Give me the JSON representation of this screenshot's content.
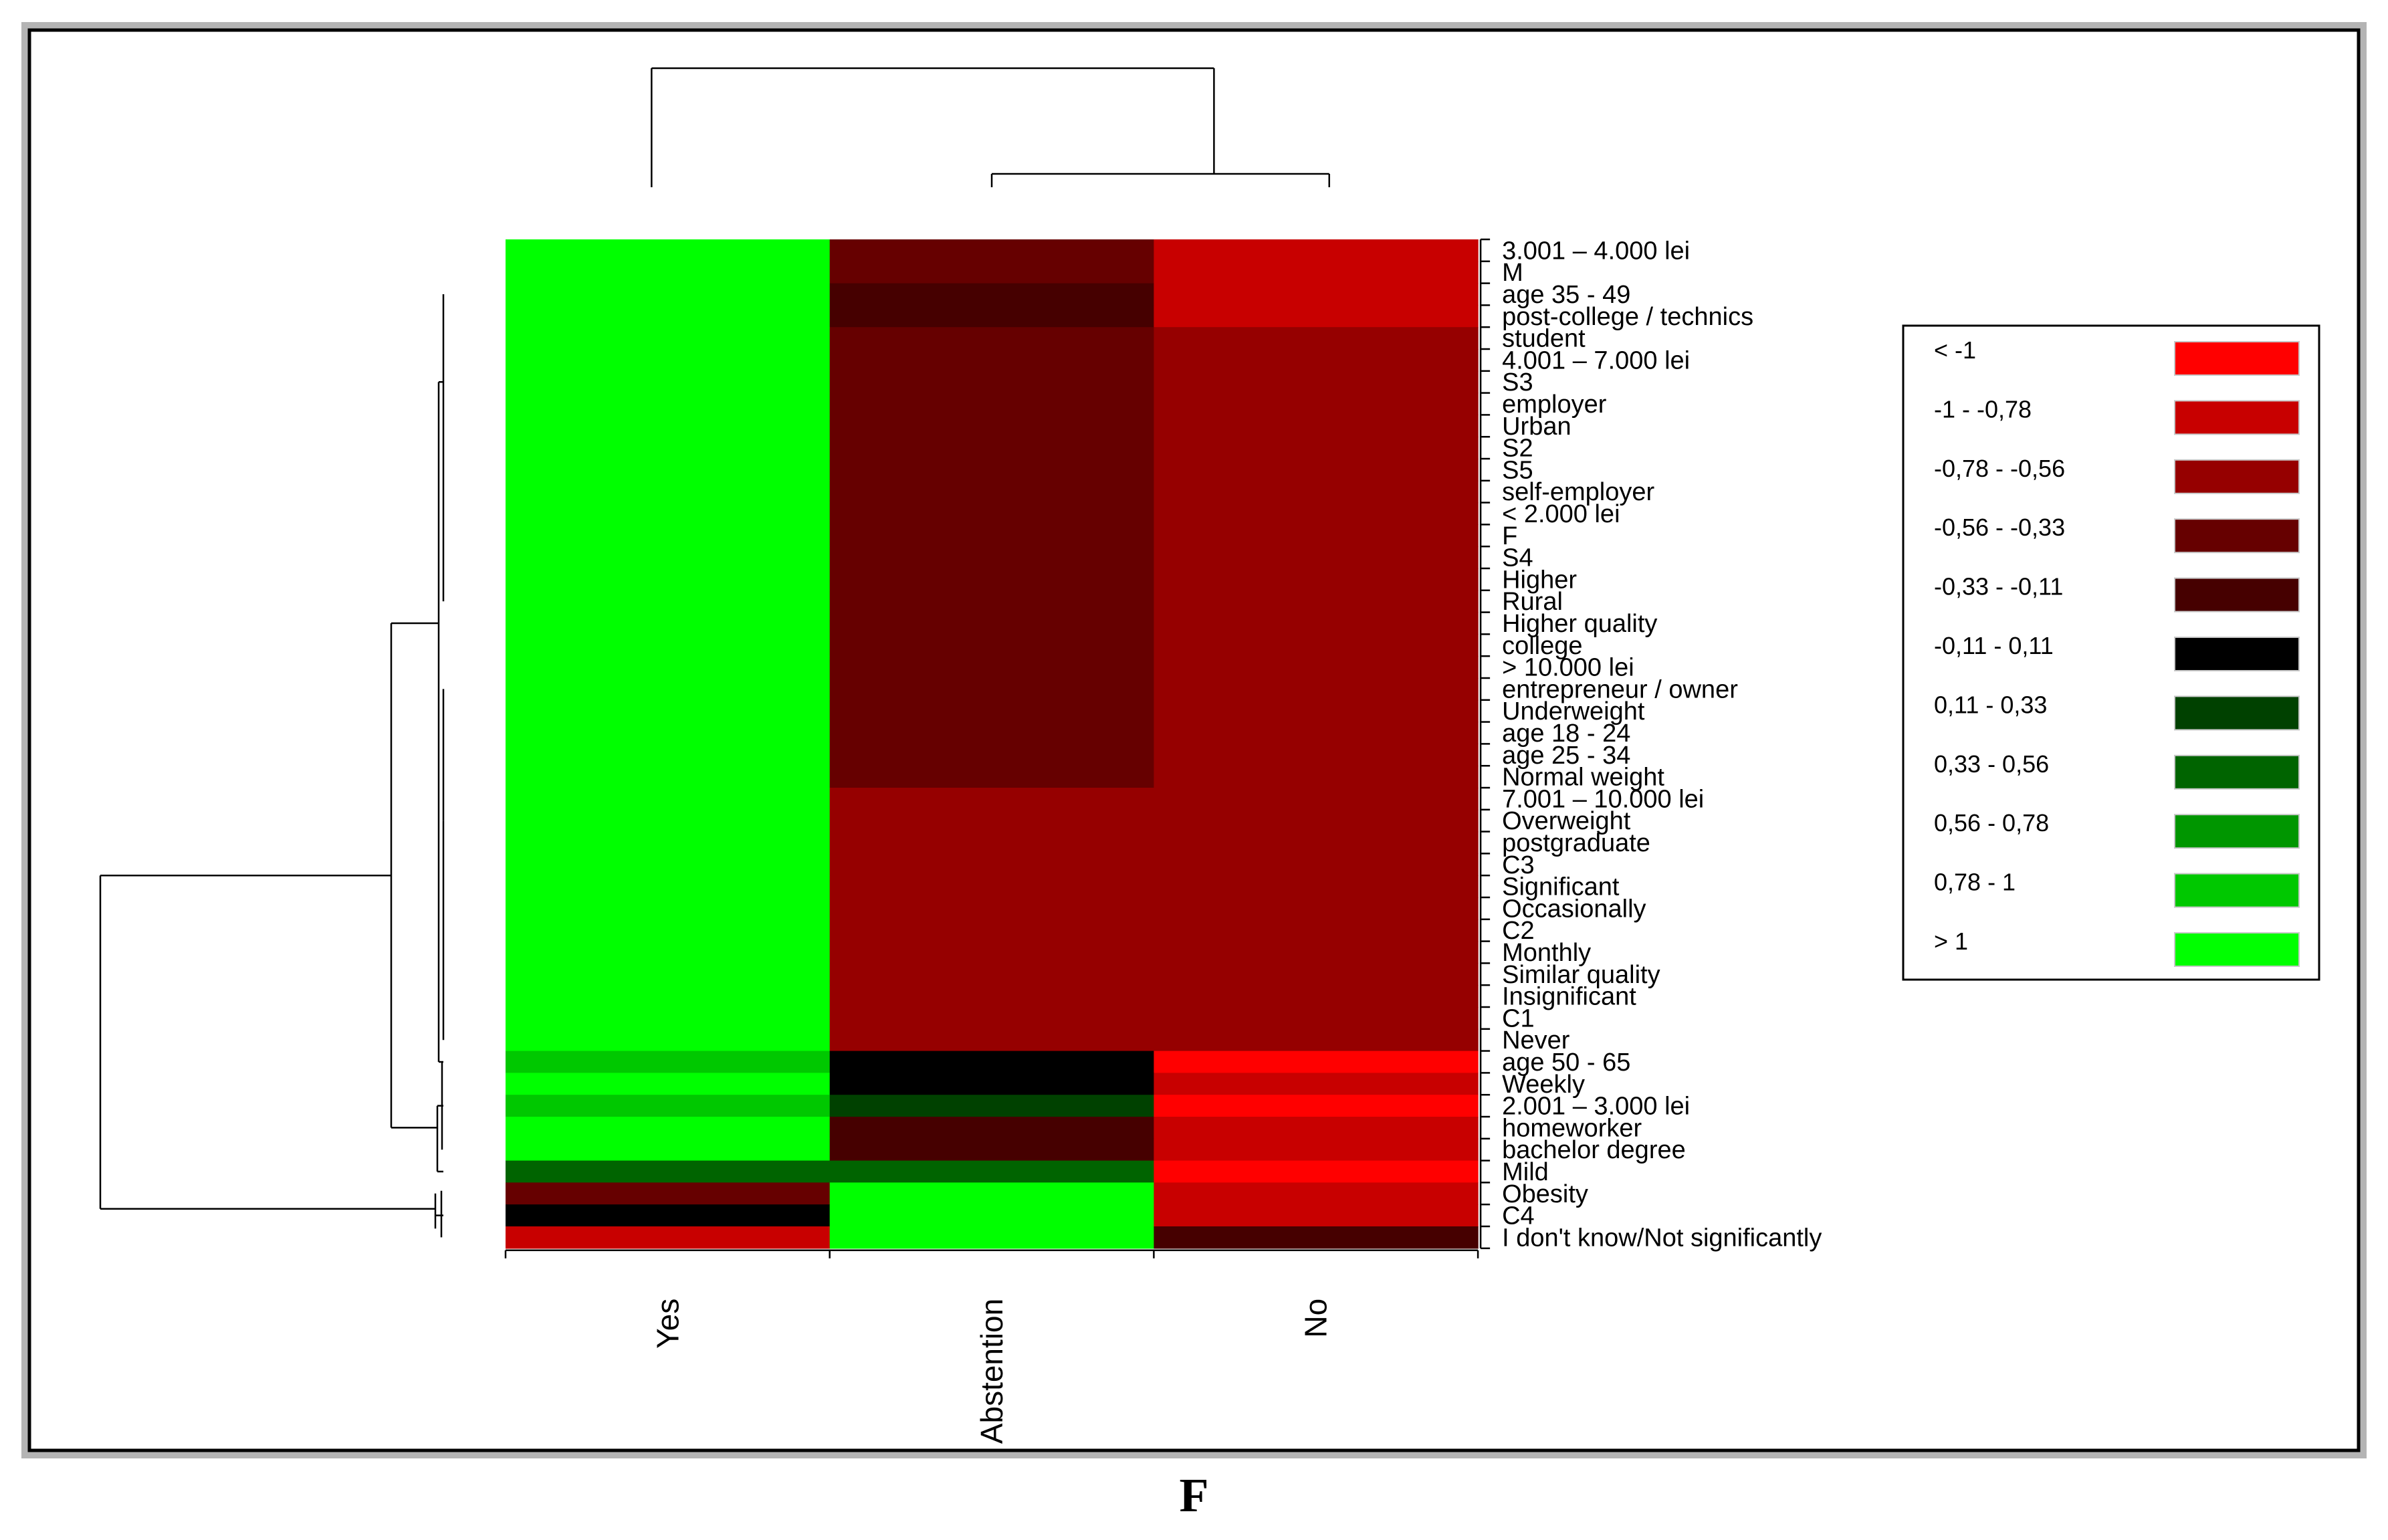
{
  "panel_label": "F",
  "colors": {
    "gt1": "#00ff00",
    "c078_1": "#00c800",
    "c056_078": "#009600",
    "c033_056": "#006400",
    "c011_033": "#004100",
    "c0": "#000000",
    "m033_011": "#460000",
    "m056_033": "#660000",
    "m078_056": "#960000",
    "m1_078": "#c80000",
    "lt_m1": "#ff0000"
  },
  "chart_data": {
    "type": "heatmap",
    "title": "",
    "columns": [
      "Yes",
      "Abstention",
      "No"
    ],
    "rows": [
      "3.001 – 4.000 lei",
      "M",
      "age 35 - 49",
      "post-college / technics",
      "student",
      "4.001 – 7.000 lei",
      "S3",
      "employer",
      "Urban",
      "S2",
      "S5",
      "self-employer",
      "< 2.000 lei",
      "F",
      "S4",
      "Higher",
      "Rural",
      "Higher quality",
      "college",
      "> 10.000 lei",
      "entrepreneur / owner",
      "Underweight",
      "age 18 - 24",
      "age 25 - 34",
      "Normal weight",
      "7.001 – 10.000 lei",
      "Overweight",
      "postgraduate",
      "C3",
      "Significant",
      "Occasionally",
      "C2",
      "Monthly",
      "Similar quality",
      "Insignificant",
      "C1",
      "Never",
      "age 50 - 65",
      "Weekly",
      "2.001 – 3.000 lei",
      "homeworker",
      "bachelor degree",
      "Mild",
      "Obesity",
      "C4",
      "I don't know/Not significantly"
    ],
    "cells": [
      [
        "gt1",
        "m056_033",
        "m1_078"
      ],
      [
        "gt1",
        "m056_033",
        "m1_078"
      ],
      [
        "gt1",
        "m033_011",
        "m1_078"
      ],
      [
        "gt1",
        "m033_011",
        "m1_078"
      ],
      [
        "gt1",
        "m056_033",
        "m078_056"
      ],
      [
        "gt1",
        "m056_033",
        "m078_056"
      ],
      [
        "gt1",
        "m056_033",
        "m078_056"
      ],
      [
        "gt1",
        "m056_033",
        "m078_056"
      ],
      [
        "gt1",
        "m056_033",
        "m078_056"
      ],
      [
        "gt1",
        "m056_033",
        "m078_056"
      ],
      [
        "gt1",
        "m056_033",
        "m078_056"
      ],
      [
        "gt1",
        "m056_033",
        "m078_056"
      ],
      [
        "gt1",
        "m056_033",
        "m078_056"
      ],
      [
        "gt1",
        "m056_033",
        "m078_056"
      ],
      [
        "gt1",
        "m056_033",
        "m078_056"
      ],
      [
        "gt1",
        "m056_033",
        "m078_056"
      ],
      [
        "gt1",
        "m056_033",
        "m078_056"
      ],
      [
        "gt1",
        "m056_033",
        "m078_056"
      ],
      [
        "gt1",
        "m056_033",
        "m078_056"
      ],
      [
        "gt1",
        "m056_033",
        "m078_056"
      ],
      [
        "gt1",
        "m056_033",
        "m078_056"
      ],
      [
        "gt1",
        "m056_033",
        "m078_056"
      ],
      [
        "gt1",
        "m056_033",
        "m078_056"
      ],
      [
        "gt1",
        "m056_033",
        "m078_056"
      ],
      [
        "gt1",
        "m056_033",
        "m078_056"
      ],
      [
        "gt1",
        "m078_056",
        "m078_056"
      ],
      [
        "gt1",
        "m078_056",
        "m078_056"
      ],
      [
        "gt1",
        "m078_056",
        "m078_056"
      ],
      [
        "gt1",
        "m078_056",
        "m078_056"
      ],
      [
        "gt1",
        "m078_056",
        "m078_056"
      ],
      [
        "gt1",
        "m078_056",
        "m078_056"
      ],
      [
        "gt1",
        "m078_056",
        "m078_056"
      ],
      [
        "gt1",
        "m078_056",
        "m078_056"
      ],
      [
        "gt1",
        "m078_056",
        "m078_056"
      ],
      [
        "gt1",
        "m078_056",
        "m078_056"
      ],
      [
        "gt1",
        "m078_056",
        "m078_056"
      ],
      [
        "gt1",
        "m078_056",
        "m078_056"
      ],
      [
        "c078_1",
        "c0",
        "lt_m1"
      ],
      [
        "gt1",
        "c0",
        "m1_078"
      ],
      [
        "c078_1",
        "c011_033",
        "lt_m1"
      ],
      [
        "gt1",
        "m033_011",
        "m1_078"
      ],
      [
        "gt1",
        "m033_011",
        "m1_078"
      ],
      [
        "c033_056",
        "c033_056",
        "lt_m1"
      ],
      [
        "m056_033",
        "gt1",
        "m1_078"
      ],
      [
        "c0",
        "gt1",
        "m1_078"
      ],
      [
        "m1_078",
        "gt1",
        "m033_011"
      ]
    ],
    "legend": {
      "placement": "right",
      "items": [
        {
          "label": "< -1",
          "color_key": "lt_m1"
        },
        {
          "label": "-1 - -0,78",
          "color_key": "m1_078"
        },
        {
          "label": "-0,78 - -0,56",
          "color_key": "m078_056"
        },
        {
          "label": "-0,56 - -0,33",
          "color_key": "m056_033"
        },
        {
          "label": "-0,33 - -0,11",
          "color_key": "m033_011"
        },
        {
          "label": "-0,11 - 0,11",
          "color_key": "c0"
        },
        {
          "label": "0,11 - 0,33",
          "color_key": "c011_033"
        },
        {
          "label": "0,33 - 0,56",
          "color_key": "c033_056"
        },
        {
          "label": "0,56 - 0,78",
          "color_key": "c056_078"
        },
        {
          "label": "0,78 - 1",
          "color_key": "c078_1"
        },
        {
          "label": "> 1",
          "color_key": "gt1"
        }
      ]
    },
    "column_dendrogram": "(Yes,(Abstention,No))",
    "row_dendrogram": "clustered"
  }
}
